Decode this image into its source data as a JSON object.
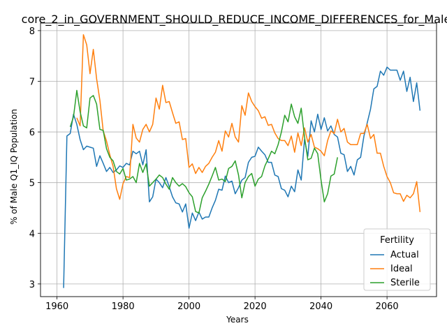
{
  "chart_data": {
    "type": "line",
    "title": "core_2_in_GOVERNMENT_SHOULD_REDUCE_INCOME_DIFFERENCES_for_Male_",
    "xlabel": "Years",
    "ylabel": "% of Male Q1_IQ Population",
    "xlim": [
      1955,
      2075
    ],
    "ylim": [
      2.75,
      8.15
    ],
    "xticks": [
      1960,
      1980,
      2000,
      2020,
      2040,
      2060
    ],
    "yticks": [
      3,
      4,
      5,
      6,
      7,
      8
    ],
    "grid": true,
    "legend": {
      "title": "Fertility",
      "placement": "lower-right"
    },
    "series": [
      {
        "name": "Actual",
        "color": "#1f77b4",
        "x_start": 1962,
        "values": [
          2.92,
          5.92,
          5.97,
          6.35,
          6.15,
          5.85,
          5.65,
          5.72,
          5.7,
          5.68,
          5.32,
          5.53,
          5.38,
          5.22,
          5.3,
          5.2,
          5.25,
          5.33,
          5.3,
          5.38,
          5.35,
          5.62,
          5.57,
          5.62,
          5.35,
          5.65,
          4.62,
          4.72,
          5.07,
          5.0,
          4.9,
          5.1,
          4.92,
          4.72,
          4.6,
          4.58,
          4.42,
          4.58,
          4.1,
          4.4,
          4.25,
          4.42,
          4.28,
          4.32,
          4.32,
          4.5,
          4.65,
          4.87,
          4.85,
          5.13,
          5.0,
          5.03,
          4.78,
          4.9,
          5.05,
          5.1,
          5.4,
          5.5,
          5.52,
          5.7,
          5.62,
          5.55,
          5.4,
          5.4,
          5.15,
          5.12,
          4.88,
          4.85,
          4.72,
          4.93,
          4.82,
          5.25,
          5.05,
          5.85,
          5.52,
          6.22,
          6.0,
          6.35,
          6.05,
          6.28,
          6.02,
          6.12,
          5.95,
          5.9,
          5.58,
          5.55,
          5.22,
          5.32,
          5.15,
          5.45,
          5.5,
          5.92,
          6.18,
          6.45,
          6.85,
          6.9,
          7.2,
          7.12,
          7.28,
          7.22,
          7.22,
          7.22,
          7.02,
          7.2,
          6.8,
          7.08,
          6.6,
          6.97,
          6.42
        ]
      },
      {
        "name": "Ideal",
        "color": "#ff7f0e",
        "x_start": 1966,
        "values": [
          6.28,
          6.12,
          7.92,
          7.72,
          7.15,
          7.63,
          7.05,
          6.62,
          6.02,
          5.82,
          5.55,
          5.32,
          4.88,
          4.67,
          4.98,
          5.12,
          5.1,
          6.15,
          5.88,
          5.8,
          6.05,
          6.15,
          6.0,
          6.15,
          6.67,
          6.45,
          6.92,
          6.58,
          6.6,
          6.38,
          6.17,
          6.2,
          5.85,
          5.87,
          5.3,
          5.37,
          5.18,
          5.3,
          5.2,
          5.32,
          5.38,
          5.5,
          5.6,
          5.83,
          5.62,
          6.02,
          5.9,
          6.17,
          5.9,
          5.8,
          6.52,
          6.33,
          6.77,
          6.6,
          6.5,
          6.42,
          6.27,
          6.3,
          6.13,
          6.15,
          5.98,
          5.87,
          5.83,
          5.83,
          5.73,
          5.92,
          5.6,
          5.98,
          5.73,
          6.08,
          5.8,
          5.95,
          5.7,
          5.67,
          5.62,
          5.53,
          5.83,
          6.02,
          5.97,
          6.25,
          6.0,
          6.07,
          5.8,
          5.75,
          5.75,
          5.75,
          5.97,
          5.97,
          6.15,
          5.87,
          5.95,
          5.58,
          5.58,
          5.32,
          5.12,
          5.0,
          4.8,
          4.78,
          4.78,
          4.63,
          4.75,
          4.7,
          4.78,
          5.02,
          4.42
        ]
      },
      {
        "name": "Sterile",
        "color": "#2ca02c",
        "x_start": 1964,
        "values": [
          6.1,
          6.3,
          6.82,
          6.4,
          6.12,
          6.08,
          6.67,
          6.72,
          6.55,
          6.05,
          6.03,
          5.67,
          5.5,
          5.43,
          5.22,
          5.17,
          5.28,
          5.05,
          5.07,
          5.12,
          5.0,
          5.38,
          5.2,
          5.37,
          4.93,
          5.0,
          5.07,
          5.15,
          5.1,
          4.97,
          4.87,
          5.1,
          5.0,
          4.93,
          4.98,
          4.92,
          4.8,
          4.72,
          4.43,
          4.4,
          4.7,
          4.83,
          4.97,
          5.13,
          5.3,
          5.05,
          5.07,
          5.02,
          5.28,
          5.32,
          5.43,
          5.15,
          4.7,
          5.0,
          5.12,
          5.18,
          4.93,
          5.07,
          5.12,
          5.33,
          5.47,
          5.62,
          5.57,
          5.75,
          6.0,
          6.33,
          6.2,
          6.55,
          6.3,
          6.17,
          6.47,
          5.9,
          5.45,
          5.48,
          5.68,
          5.57,
          5.05,
          4.62,
          4.78,
          5.13,
          5.17,
          5.5
        ]
      }
    ]
  }
}
